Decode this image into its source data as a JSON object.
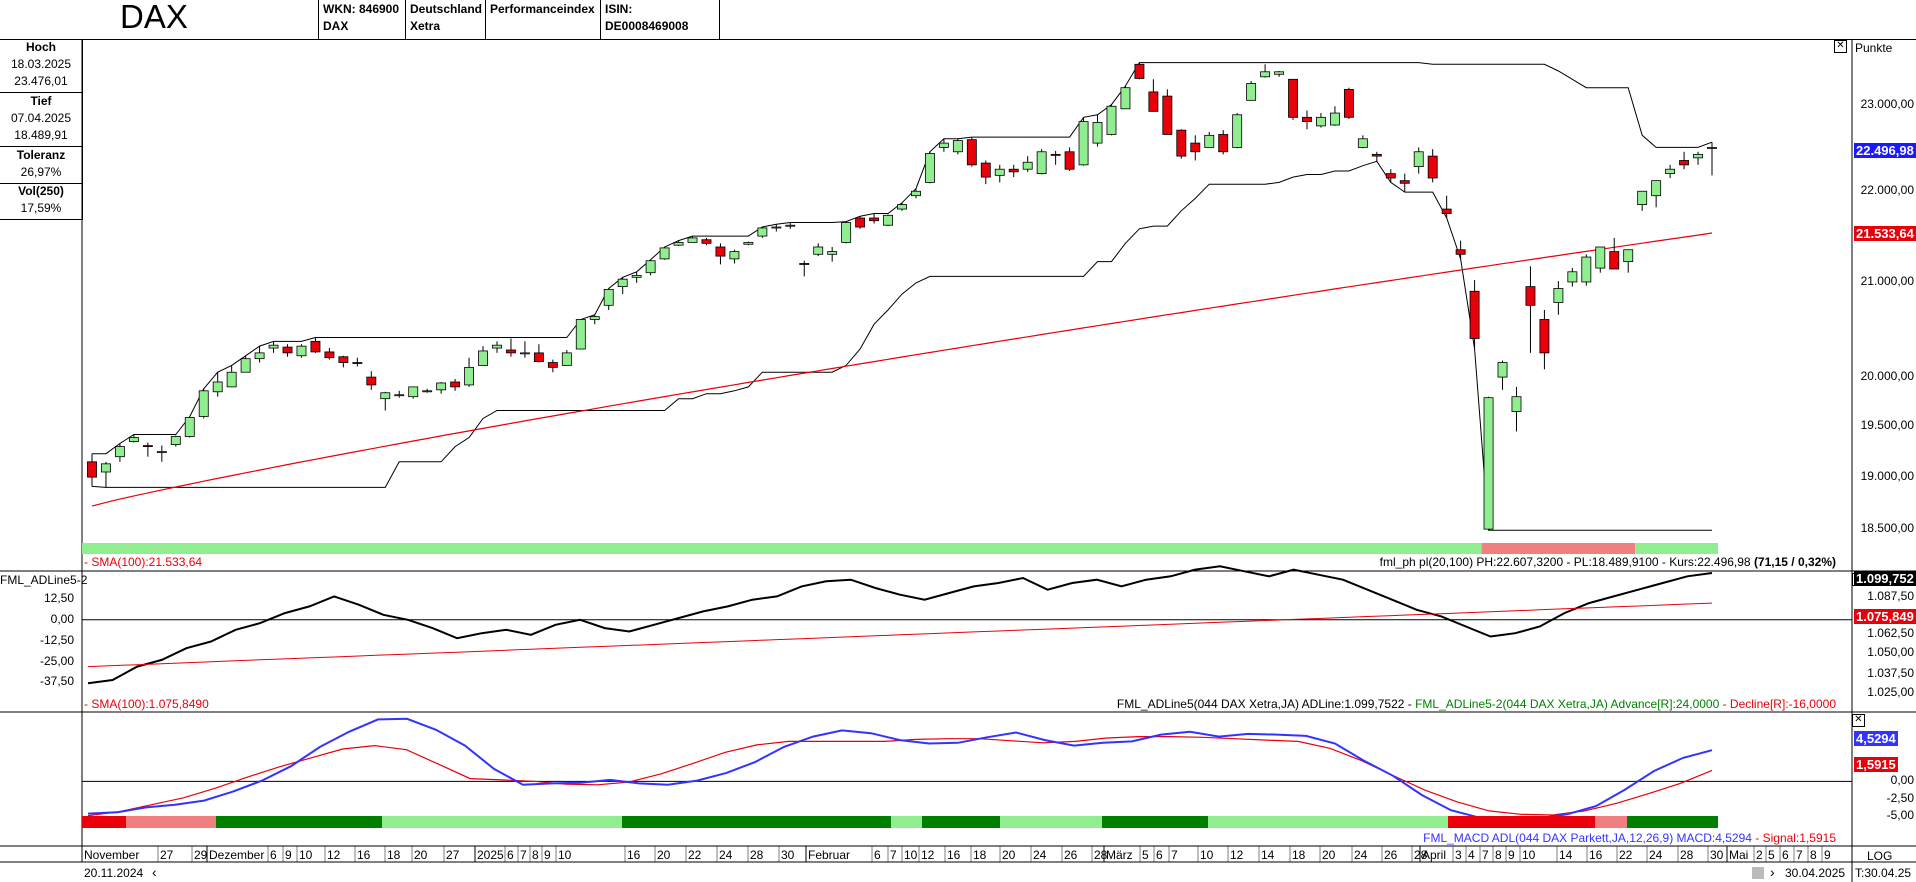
{
  "header": {
    "title": "DAX",
    "cells": [
      {
        "l1": "WKN: 846900",
        "l2": "DAX"
      },
      {
        "l1": "Deutschland",
        "l2": "Xetra"
      },
      {
        "l1": "Performanceindex",
        "l2": ""
      },
      {
        "l1": "ISIN: DE0008469008",
        "l2": ""
      }
    ]
  },
  "stats": [
    {
      "label": "Hoch",
      "l2": "18.03.2025",
      "l3": "23.476,01"
    },
    {
      "label": "Tief",
      "l2": "07.04.2025",
      "l3": "18.489,91"
    },
    {
      "label": "Toleranz",
      "l2": "26,97%",
      "l3": ""
    },
    {
      "label": "Vol(250)",
      "l2": "17,59%",
      "l3": ""
    }
  ],
  "main_panel": {
    "unit_label": "Punkte",
    "sma_label": "- SMA(100):21.533,64",
    "info_label": "fml_ph pl(20,100) PH:22.607,3200 - PL:18.489,9100 - Kurs:22.496,98",
    "info_change": "(71,15 / 0,32%)",
    "price_box": "22.496,98",
    "sma_box": "21.533,64",
    "y_ticks": [
      "23.000,00",
      "22.000,00",
      "21.000,00",
      "20.000,00",
      "19.500,00",
      "19.000,00",
      "18.500,00"
    ]
  },
  "adline_panel": {
    "name": "FML_ADLine5-2",
    "left_ticks": [
      "12,50",
      "0,00",
      "-12,50",
      "-25,00",
      "-37,50"
    ],
    "right_ticks": [
      "1.087,50",
      "1.062,50",
      "1.050,00",
      "1.037,50",
      "1.025,00"
    ],
    "value_box": "1.099,752",
    "sma_box": "1.075,849",
    "sma_label": "- SMA(100):1.075,8490",
    "info_label_black": "FML_ADLine5(044 DAX Xetra,JA) ADLine:1.099,7522 - ",
    "info_label_green": "FML_ADLine5-2(044 DAX Xetra,JA) Advance[R]:24,0000",
    "info_label_red": " - Decline[R]:-16,0000"
  },
  "macd_panel": {
    "right_ticks": [
      "0,00",
      "-2,50",
      "-5,00"
    ],
    "macd_box": "4,5294",
    "signal_box": "1,5915",
    "info_label_blue": "FML_MACD ADL(044 DAX Parkett,JA,12,26,9) MACD:4,5294",
    "info_label_red": " - Signal:1,5915"
  },
  "x_axis": {
    "labels": [
      "November",
      "27",
      "29",
      "Dezember",
      "6",
      "9",
      "10",
      "12",
      "16",
      "18",
      "20",
      "27",
      "2025",
      "6",
      "7",
      "8",
      "9",
      "10",
      "16",
      "20",
      "22",
      "24",
      "28",
      "30",
      "Februar",
      "6",
      "7",
      "10",
      "12",
      "16",
      "18",
      "20",
      "24",
      "26",
      "28",
      "März",
      "5",
      "6",
      "7",
      "10",
      "12",
      "14",
      "18",
      "20",
      "24",
      "26",
      "28",
      "April",
      "3",
      "4",
      "7",
      "8",
      "9",
      "10",
      "14",
      "16",
      "22",
      "24",
      "28",
      "30",
      "Mai",
      "2",
      "5",
      "6",
      "7",
      "8",
      "9"
    ],
    "start_date": "20.11.2024",
    "end_date": "30.04.2025",
    "log_label": "LOG",
    "time_label": "T:30.04.25"
  },
  "colors": {
    "up": "#90EE90",
    "down": "#E8000B",
    "sma": "#E8000B",
    "adl": "#000000",
    "macd": "#3333FF",
    "signal": "#E8000B",
    "price_box_bg": "#1A1AFF",
    "band_green": "#90EE90",
    "band_red": "#F08080",
    "dark_green": "#008000",
    "dark_red": "#E8000B"
  },
  "chart_data": {
    "type": "candlestick",
    "series": [
      {
        "name": "DAX",
        "values": [
          [
            19150,
            19230,
            18910,
            19000
          ],
          [
            19050,
            19150,
            18900,
            19130
          ],
          [
            19200,
            19330,
            19150,
            19300
          ],
          [
            19350,
            19420,
            19340,
            19390
          ],
          [
            19310,
            19340,
            19200,
            19300
          ],
          [
            19250,
            19310,
            19150,
            19250
          ],
          [
            19320,
            19410,
            19300,
            19400
          ],
          [
            19400,
            19600,
            19390,
            19590
          ],
          [
            19600,
            19880,
            19580,
            19860
          ],
          [
            19850,
            20050,
            19800,
            19950
          ],
          [
            19900,
            20120,
            19900,
            20050
          ],
          [
            20050,
            20220,
            20050,
            20190
          ],
          [
            20190,
            20320,
            20150,
            20250
          ],
          [
            20300,
            20370,
            20250,
            20330
          ],
          [
            20310,
            20340,
            20210,
            20250
          ],
          [
            20220,
            20340,
            20200,
            20320
          ],
          [
            20370,
            20410,
            20250,
            20260
          ],
          [
            20260,
            20300,
            20180,
            20200
          ],
          [
            20210,
            20220,
            20100,
            20150
          ],
          [
            20150,
            20200,
            20110,
            20140
          ],
          [
            20000,
            20060,
            19870,
            19920
          ],
          [
            19780,
            19850,
            19660,
            19840
          ],
          [
            19810,
            19860,
            19790,
            19820
          ],
          [
            19800,
            19900,
            19780,
            19900
          ],
          [
            19850,
            19880,
            19840,
            19860
          ],
          [
            19870,
            19950,
            19830,
            19940
          ],
          [
            19950,
            19980,
            19860,
            19900
          ],
          [
            19920,
            20200,
            19900,
            20100
          ],
          [
            20120,
            20320,
            20120,
            20270
          ],
          [
            20300,
            20370,
            20250,
            20330
          ],
          [
            20280,
            20400,
            20210,
            20250
          ],
          [
            20250,
            20370,
            20200,
            20250
          ],
          [
            20250,
            20340,
            20150,
            20160
          ],
          [
            20150,
            20180,
            20050,
            20100
          ],
          [
            20120,
            20280,
            20120,
            20250
          ],
          [
            20290,
            20600,
            20290,
            20600
          ],
          [
            20600,
            20650,
            20550,
            20630
          ],
          [
            20750,
            20930,
            20700,
            20920
          ],
          [
            20950,
            21050,
            20870,
            21030
          ],
          [
            21050,
            21110,
            20990,
            21070
          ],
          [
            21100,
            21240,
            21070,
            21230
          ],
          [
            21250,
            21380,
            21240,
            21370
          ],
          [
            21400,
            21450,
            21390,
            21430
          ],
          [
            21430,
            21500,
            21430,
            21480
          ],
          [
            21460,
            21480,
            21400,
            21420
          ],
          [
            21380,
            21420,
            21190,
            21280
          ],
          [
            21250,
            21350,
            21200,
            21330
          ],
          [
            21410,
            21440,
            21400,
            21430
          ],
          [
            21500,
            21600,
            21480,
            21590
          ],
          [
            21600,
            21630,
            21550,
            21600
          ],
          [
            21610,
            21650,
            21580,
            21620
          ],
          [
            21200,
            21230,
            21060,
            21190
          ],
          [
            21300,
            21420,
            21280,
            21380
          ],
          [
            21300,
            21380,
            21220,
            21330
          ],
          [
            21430,
            21660,
            21420,
            21650
          ],
          [
            21700,
            21720,
            21580,
            21600
          ],
          [
            21700,
            21750,
            21640,
            21670
          ],
          [
            21620,
            21740,
            21610,
            21730
          ],
          [
            21800,
            21870,
            21780,
            21850
          ],
          [
            21950,
            22030,
            21920,
            22000
          ],
          [
            22100,
            22450,
            22090,
            22430
          ],
          [
            22500,
            22600,
            22450,
            22550
          ],
          [
            22450,
            22600,
            22420,
            22580
          ],
          [
            22590,
            22620,
            22280,
            22300
          ],
          [
            22320,
            22350,
            22080,
            22160
          ],
          [
            22180,
            22300,
            22100,
            22250
          ],
          [
            22250,
            22300,
            22160,
            22220
          ],
          [
            22250,
            22400,
            22220,
            22330
          ],
          [
            22200,
            22480,
            22190,
            22450
          ],
          [
            22420,
            22460,
            22300,
            22410
          ],
          [
            22450,
            22500,
            22230,
            22250
          ],
          [
            22300,
            22850,
            22290,
            22800
          ],
          [
            22550,
            22880,
            22510,
            22790
          ],
          [
            22650,
            23000,
            22640,
            22980
          ],
          [
            22950,
            23220,
            22950,
            23200
          ],
          [
            23480,
            23500,
            23300,
            23310
          ],
          [
            23150,
            23300,
            22920,
            22920
          ],
          [
            23100,
            23180,
            22650,
            22650
          ],
          [
            22700,
            22710,
            22370,
            22400
          ],
          [
            22550,
            22640,
            22350,
            22450
          ],
          [
            22500,
            22680,
            22500,
            22640
          ],
          [
            22650,
            22700,
            22420,
            22450
          ],
          [
            22500,
            22900,
            22490,
            22880
          ],
          [
            23050,
            23280,
            23050,
            23250
          ],
          [
            23330,
            23480,
            23320,
            23390
          ],
          [
            23360,
            23400,
            23330,
            23390
          ],
          [
            23300,
            23300,
            22820,
            22850
          ],
          [
            22850,
            22930,
            22710,
            22800
          ],
          [
            22750,
            22900,
            22730,
            22850
          ],
          [
            22760,
            22980,
            22750,
            22900
          ],
          [
            23180,
            23200,
            22830,
            22850
          ],
          [
            22500,
            22640,
            22490,
            22600
          ],
          [
            22420,
            22450,
            22340,
            22400
          ],
          [
            22200,
            22250,
            22100,
            22150
          ],
          [
            22120,
            22200,
            21990,
            22090
          ],
          [
            22280,
            22500,
            22200,
            22450
          ],
          [
            22400,
            22480,
            22100,
            22150
          ],
          [
            21800,
            21950,
            21700,
            21750
          ],
          [
            21350,
            21450,
            21250,
            21300
          ],
          [
            20900,
            21020,
            20290,
            20400
          ],
          [
            18500,
            19800,
            18490,
            19790
          ],
          [
            20000,
            20170,
            19870,
            20150
          ],
          [
            19650,
            19900,
            19450,
            19800
          ],
          [
            20950,
            21170,
            20250,
            20750
          ],
          [
            20600,
            20700,
            20080,
            20250
          ],
          [
            20780,
            21010,
            20650,
            20930
          ],
          [
            21000,
            21150,
            20950,
            21110
          ],
          [
            21000,
            21300,
            20960,
            21270
          ],
          [
            21150,
            21380,
            21100,
            21380
          ],
          [
            21330,
            21480,
            21190,
            21140
          ],
          [
            21220,
            21350,
            21100,
            21350
          ],
          [
            21850,
            22000,
            21780,
            22000
          ],
          [
            21950,
            22120,
            21820,
            22120
          ],
          [
            22200,
            22300,
            22150,
            22250
          ],
          [
            22350,
            22450,
            22250,
            22300
          ],
          [
            22380,
            22450,
            22300,
            22420
          ],
          [
            22500,
            22560,
            22180,
            22500
          ]
        ]
      }
    ],
    "sma100": {
      "start": 18720,
      "end": 21533.64
    },
    "ylim": [
      18350,
      23750
    ],
    "ylabel": "Punkte",
    "adline": [
      -38,
      -36,
      -28,
      -24,
      -17,
      -13,
      -6,
      -2,
      4,
      8,
      14,
      9,
      3,
      0,
      -5,
      -11,
      -8,
      -6,
      -9,
      -3,
      0,
      -5,
      -7,
      -3,
      1,
      5,
      8,
      12,
      14,
      20,
      23,
      24,
      19,
      15,
      12,
      16,
      20,
      22,
      25,
      18,
      22,
      24,
      20,
      24,
      26,
      30,
      32,
      29,
      26,
      30,
      27,
      24,
      18,
      12,
      6,
      2,
      -4,
      -10,
      -8,
      -4,
      4,
      10,
      14,
      18,
      22,
      26,
      28
    ],
    "adline_ylim": [
      -45,
      25
    ],
    "macd": [
      -4.7,
      -4.5,
      -3.8,
      -3.4,
      -2.8,
      -1.5,
      0.1,
      2.2,
      5.0,
      7.2,
      9.0,
      9.1,
      7.5,
      5.2,
      1.8,
      -0.5,
      -0.3,
      -0.2,
      0.2,
      -0.3,
      -0.5,
      0.1,
      1.2,
      2.8,
      5.0,
      6.5,
      7.4,
      7.0,
      6.0,
      5.5,
      5.6,
      6.4,
      7.1,
      6.0,
      5.2,
      5.6,
      5.8,
      6.8,
      7.2,
      6.5,
      6.9,
      6.8,
      6.6,
      5.5,
      3.0,
      0.8,
      -2.0,
      -4.2,
      -5.3,
      -5.6,
      -5.4,
      -4.8,
      -3.6,
      -1.2,
      1.5,
      3.4,
      4.5294
    ],
    "signal": [
      -5.0,
      -4.4,
      -3.4,
      -2.4,
      -1.0,
      0.6,
      2.1,
      3.4,
      4.7,
      5.2,
      4.6,
      2.5,
      0.4,
      0.2,
      0.0,
      -0.4,
      -0.5,
      -0.1,
      1.1,
      2.6,
      4.2,
      5.3,
      5.8,
      5.8,
      5.8,
      5.8,
      6.1,
      6.2,
      6.2,
      5.9,
      5.6,
      5.8,
      6.3,
      6.5,
      6.5,
      6.4,
      6.2,
      6.0,
      5.8,
      4.8,
      3.0,
      0.8,
      -1.3,
      -3.0,
      -4.3,
      -4.8,
      -4.9,
      -4.3,
      -3.2,
      -1.8,
      -0.3,
      1.5915
    ],
    "macd_ylim": [
      -6.5,
      9.5
    ]
  }
}
